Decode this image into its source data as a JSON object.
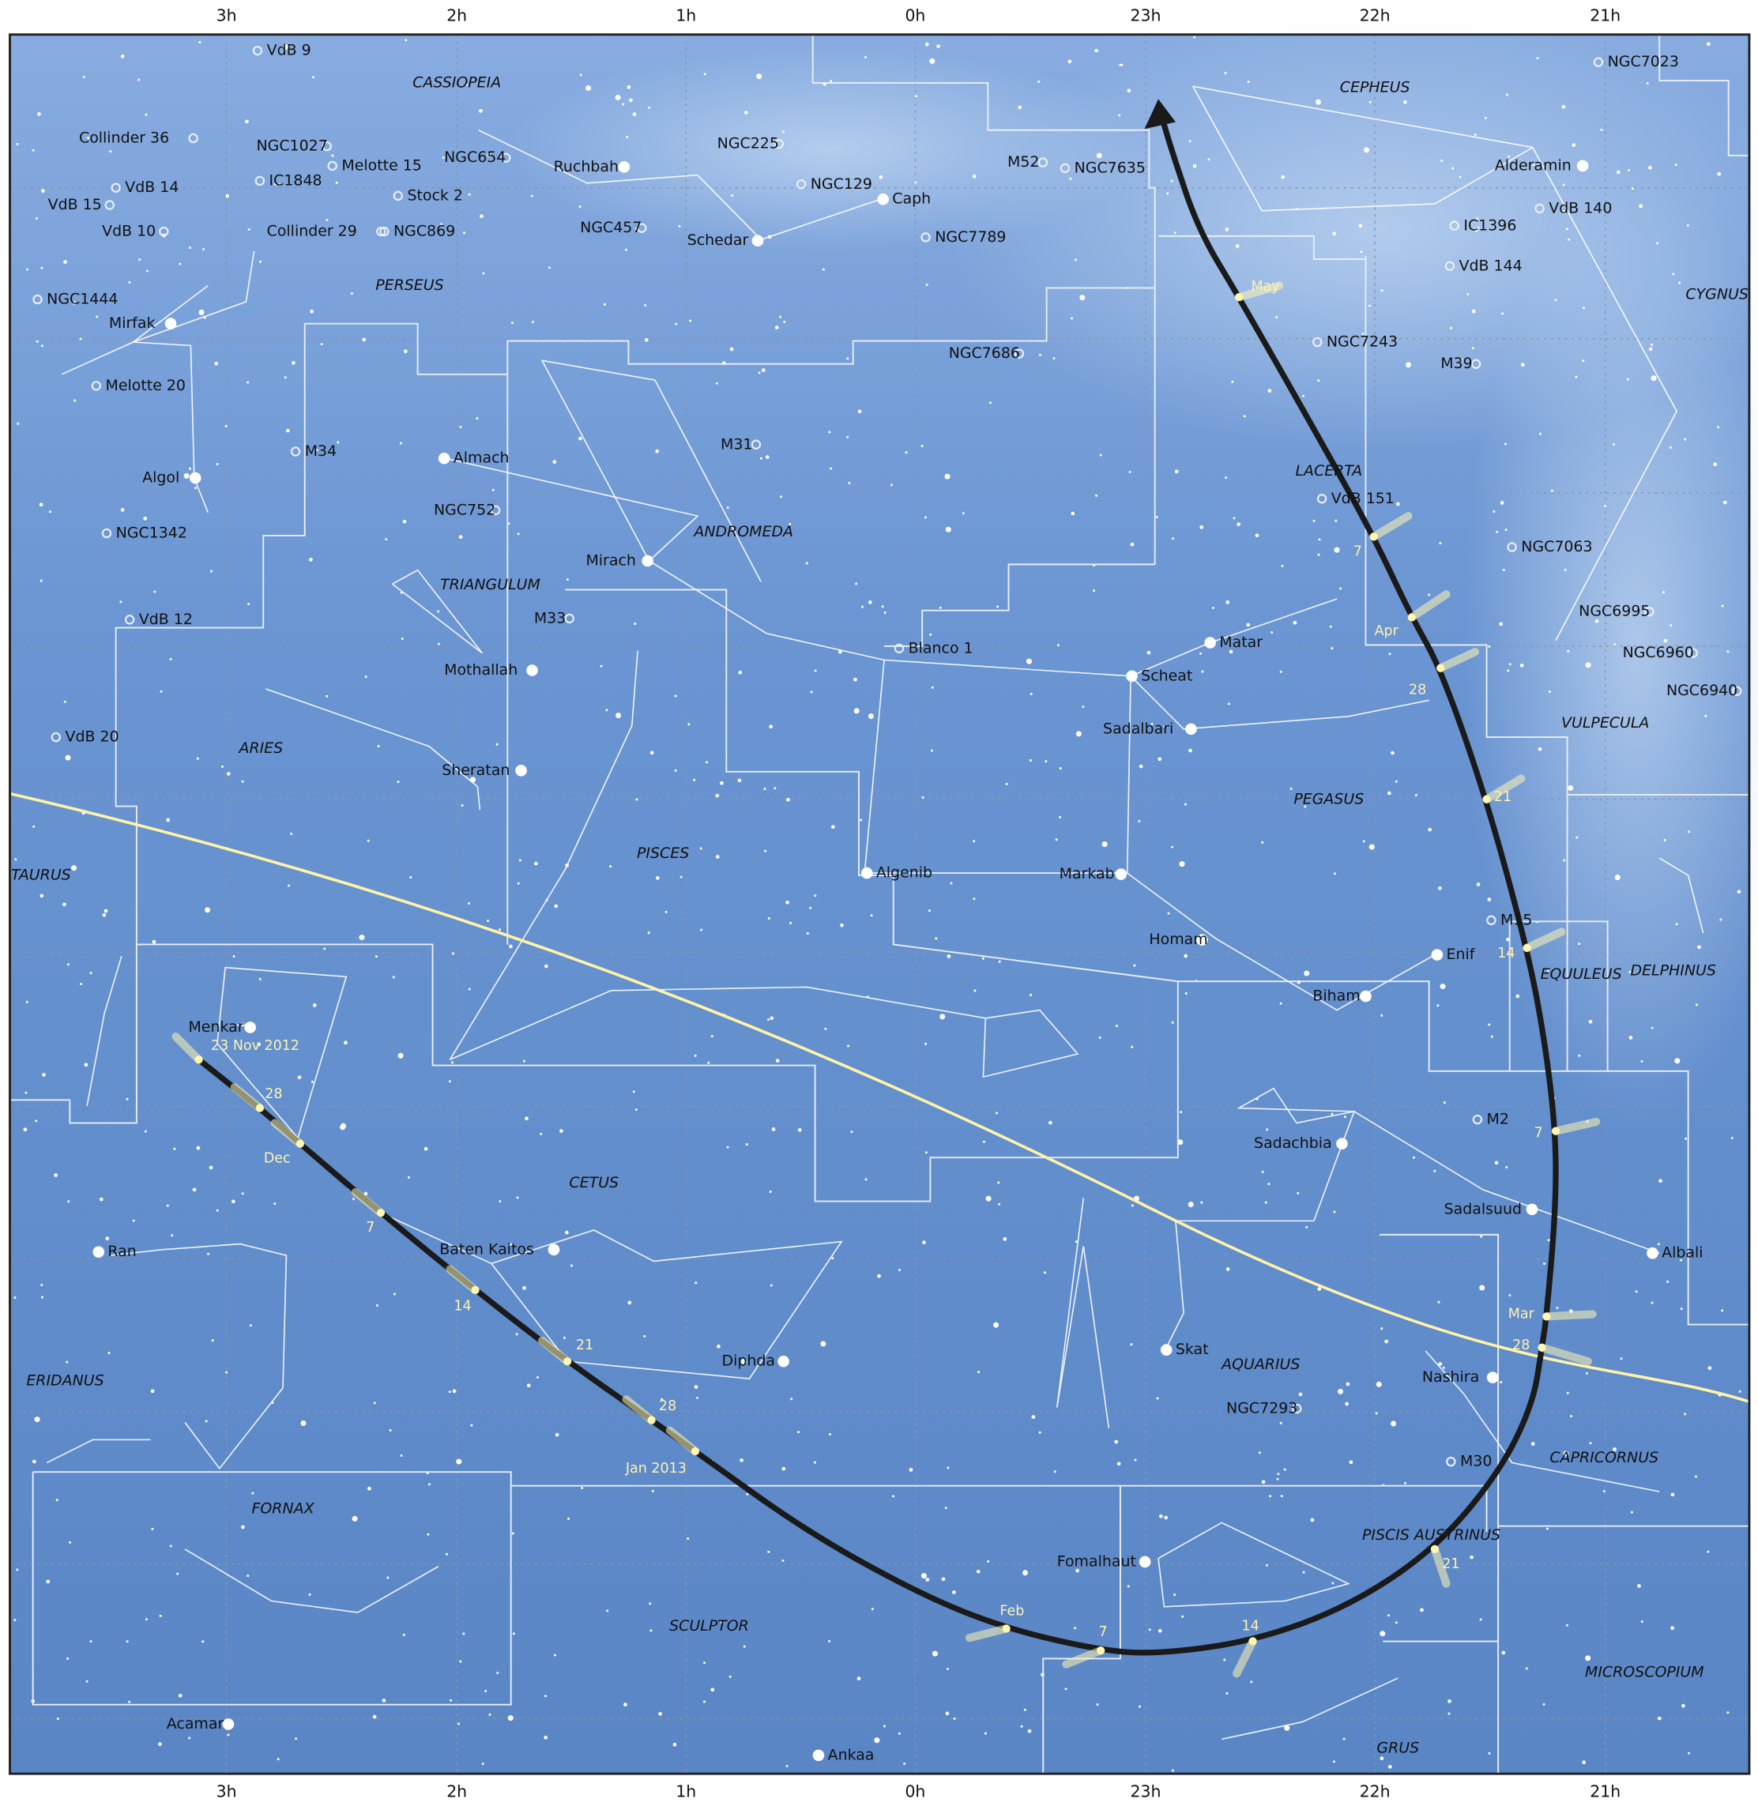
{
  "hour_labels": [
    "3h",
    "2h",
    "1h",
    "0h",
    "23h",
    "22h",
    "21h"
  ],
  "constellations": [
    "CASSIOPEIA",
    "CEPHEUS",
    "PERSEUS",
    "CYGNUS",
    "LACERTA",
    "ANDROMEDA",
    "TRIANGULUM",
    "VULPECULA",
    "ARIES",
    "PEGASUS",
    "PISCES",
    "TAURUS",
    "EQUULEUS",
    "DELPHINUS",
    "CETUS",
    "AQUARIUS",
    "ERIDANUS",
    "CAPRICORNUS",
    "FORNAX",
    "PISCIS AUSTRINUS",
    "SCULPTOR",
    "MICROSCOPIUM",
    "GRUS"
  ],
  "objects": [
    "VdB 9",
    "NGC7023",
    "Collinder 36",
    "NGC1027",
    "Melotte 15",
    "NGC654",
    "Ruchbah",
    "NGC225",
    "M52",
    "NGC7635",
    "Alderamin",
    "IC1848",
    "VdB 14",
    "NGC129",
    "Caph",
    "Stock 2",
    "VdB 15",
    "VdB 140",
    "NGC457",
    "IC1396",
    "VdB 10",
    "Collinder 29",
    "NGC869",
    "Schedar",
    "NGC7789",
    "VdB 144",
    "NGC1444",
    "Mirfak",
    "NGC7243",
    "NGC7686",
    "M39",
    "Melotte 20",
    "M31",
    "M34",
    "Almach",
    "Algol",
    "VdB 151",
    "NGC752",
    "NGC1342",
    "NGC7063",
    "Mirach",
    "NGC6995",
    "M33",
    "VdB 12",
    "Matar",
    "Blanco 1",
    "NGC6960",
    "Mothallah",
    "Scheat",
    "NGC6940",
    "Sadalbari",
    "VdB 20",
    "Sheratan",
    "Algenib",
    "Markab",
    "M15",
    "Homam",
    "Enif",
    "Biham",
    "Menkar",
    "M2",
    "Sadachbia",
    "Sadalsuud",
    "Ran",
    "Baten Kaitos",
    "Albali",
    "Diphda",
    "Skat",
    "Nashira",
    "NGC7293",
    "M30",
    "Fomalhaut",
    "Acamar",
    "Ankaa"
  ],
  "comet_dates": [
    "23 Nov 2012",
    "28",
    "Dec",
    "7",
    "14",
    "21",
    "28",
    "Jan 2013",
    "Feb",
    "7",
    "14",
    "21",
    "28",
    "Mar",
    "7",
    "14",
    "21",
    "28",
    "Apr",
    "7",
    "May"
  ]
}
